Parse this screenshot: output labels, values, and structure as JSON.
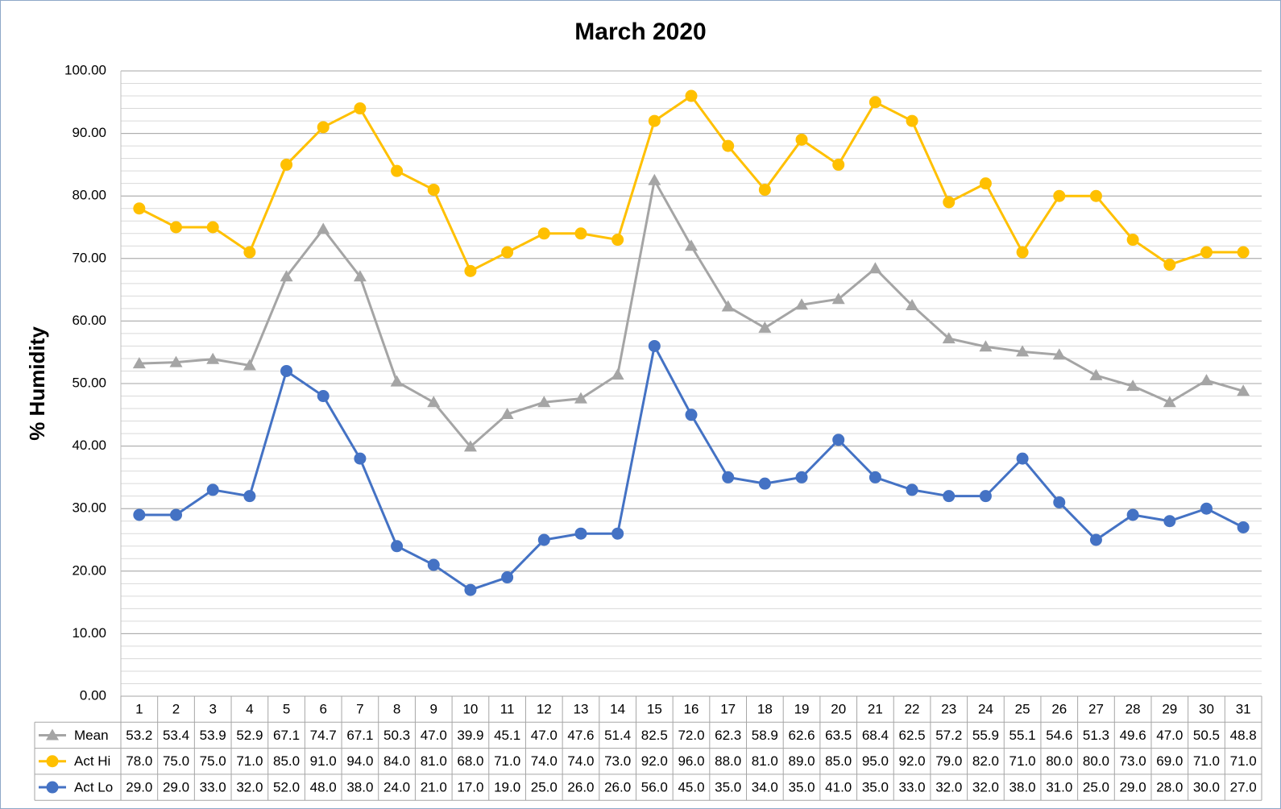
{
  "chart_data": {
    "type": "line",
    "title": "March 2020",
    "y_label": "% Humidity",
    "categories": [
      "1",
      "2",
      "3",
      "4",
      "5",
      "6",
      "7",
      "8",
      "9",
      "10",
      "11",
      "12",
      "13",
      "14",
      "15",
      "16",
      "17",
      "18",
      "19",
      "20",
      "21",
      "22",
      "23",
      "24",
      "25",
      "26",
      "27",
      "28",
      "29",
      "30",
      "31"
    ],
    "series": [
      {
        "name": "Mean",
        "color": "#a5a5a5",
        "marker": "triangle",
        "values": [
          53.2,
          53.4,
          53.9,
          52.9,
          67.1,
          74.7,
          67.1,
          50.3,
          47.0,
          39.9,
          45.1,
          47.0,
          47.6,
          51.4,
          82.5,
          72.0,
          62.3,
          58.9,
          62.6,
          63.5,
          68.4,
          62.5,
          57.2,
          55.9,
          55.1,
          54.6,
          51.3,
          49.6,
          47.0,
          50.5,
          48.8
        ],
        "value_labels": [
          "53.2",
          "53.4",
          "53.9",
          "52.9",
          "67.1",
          "74.7",
          "67.1",
          "50.3",
          "47.0",
          "39.9",
          "45.1",
          "47.0",
          "47.6",
          "51.4",
          "82.5",
          "72.0",
          "62.3",
          "58.9",
          "62.6",
          "63.5",
          "68.4",
          "62.5",
          "57.2",
          "55.9",
          "55.1",
          "54.6",
          "51.3",
          "49.6",
          "47.0",
          "50.5",
          "48.8"
        ]
      },
      {
        "name": "Act Hi",
        "color": "#ffc000",
        "marker": "circle",
        "values": [
          78,
          75,
          75,
          71,
          85,
          91,
          94,
          84,
          81,
          68,
          71,
          74,
          74,
          73,
          92,
          96,
          88,
          81,
          89,
          85,
          95,
          92,
          79,
          82,
          71,
          80,
          80,
          73,
          69,
          71,
          71
        ],
        "value_labels": [
          "78.0",
          "75.0",
          "75.0",
          "71.0",
          "85.0",
          "91.0",
          "94.0",
          "84.0",
          "81.0",
          "68.0",
          "71.0",
          "74.0",
          "74.0",
          "73.0",
          "92.0",
          "96.0",
          "88.0",
          "81.0",
          "89.0",
          "85.0",
          "95.0",
          "92.0",
          "79.0",
          "82.0",
          "71.0",
          "80.0",
          "80.0",
          "73.0",
          "69.0",
          "71.0",
          "71.0"
        ]
      },
      {
        "name": "Act Lo",
        "color": "#4472c4",
        "marker": "circle",
        "values": [
          29,
          29,
          33,
          32,
          52,
          48,
          38,
          24,
          21,
          17,
          19,
          25,
          26,
          26,
          56,
          45,
          35,
          34,
          35,
          41,
          35,
          33,
          32,
          32,
          38,
          31,
          25,
          29,
          28,
          30,
          27
        ],
        "value_labels": [
          "29.0",
          "29.0",
          "33.0",
          "32.0",
          "52.0",
          "48.0",
          "38.0",
          "24.0",
          "21.0",
          "17.0",
          "19.0",
          "25.0",
          "26.0",
          "26.0",
          "56.0",
          "45.0",
          "35.0",
          "34.0",
          "35.0",
          "41.0",
          "35.0",
          "33.0",
          "32.0",
          "32.0",
          "38.0",
          "31.0",
          "25.0",
          "29.0",
          "28.0",
          "30.0",
          "27.0"
        ]
      }
    ],
    "ylim": [
      0,
      100
    ],
    "yticks": [
      {
        "value": 0,
        "label": "0.00"
      },
      {
        "value": 10,
        "label": "10.00"
      },
      {
        "value": 20,
        "label": "20.00"
      },
      {
        "value": 30,
        "label": "30.00"
      },
      {
        "value": 40,
        "label": "40.00"
      },
      {
        "value": 50,
        "label": "50.00"
      },
      {
        "value": 60,
        "label": "60.00"
      },
      {
        "value": 70,
        "label": "70.00"
      },
      {
        "value": 80,
        "label": "80.00"
      },
      {
        "value": 90,
        "label": "90.00"
      },
      {
        "value": 100,
        "label": "100.00"
      }
    ],
    "minor_tick_step": 2,
    "grid": true,
    "data_table": true
  }
}
